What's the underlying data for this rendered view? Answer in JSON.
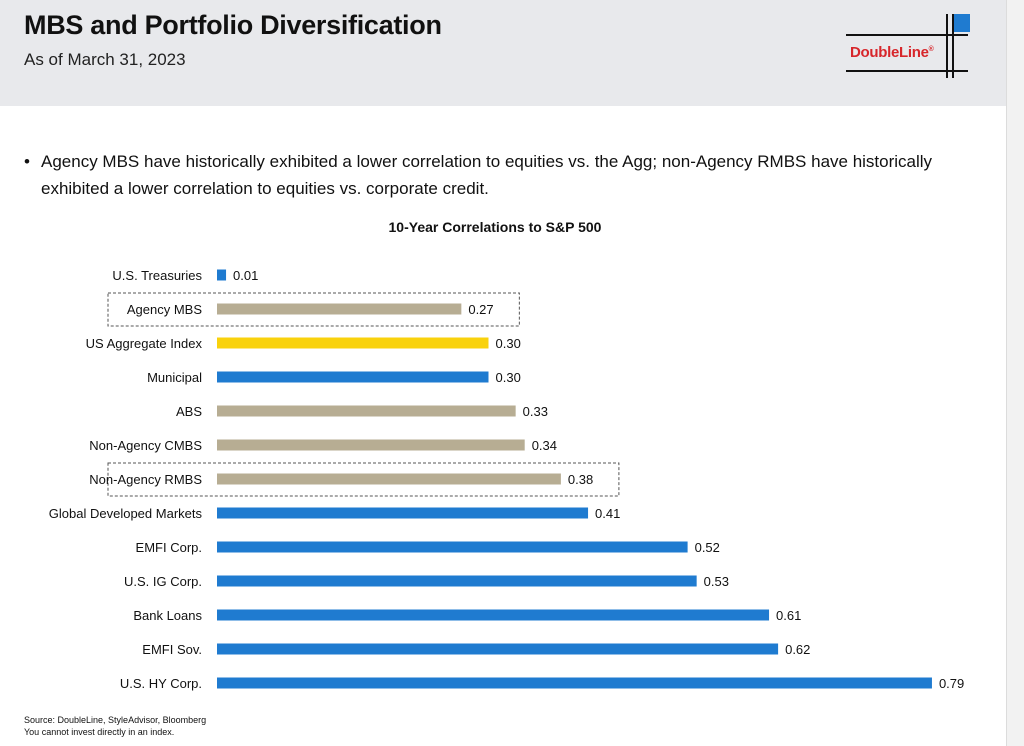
{
  "header": {
    "title": "MBS and Portfolio Diversification",
    "subtitle": "As of March 31, 2023",
    "logo_text": "DoubleLine",
    "logo_mark": "®"
  },
  "bullet": {
    "text": "Agency MBS have historically exhibited a lower correlation to equities vs. the Agg; non-Agency RMBS have historically exhibited a lower correlation to equities vs. corporate credit."
  },
  "colors": {
    "blue": "#1f7bd0",
    "tan": "#b7ad93",
    "yellow": "#f9d20c"
  },
  "chart_data": {
    "type": "bar",
    "orientation": "horizontal",
    "title": "10-Year Correlations to S&P 500",
    "categories": [
      "U.S. Treasuries",
      "Agency MBS",
      "US Aggregate Index",
      "Municipal",
      "ABS",
      "Non-Agency CMBS",
      "Non-Agency RMBS",
      "Global Developed Markets",
      "EMFI Corp.",
      "U.S. IG Corp.",
      "Bank Loans",
      "EMFI Sov.",
      "U.S. HY Corp."
    ],
    "values": [
      0.01,
      0.27,
      0.3,
      0.3,
      0.33,
      0.34,
      0.38,
      0.41,
      0.52,
      0.53,
      0.61,
      0.62,
      0.79
    ],
    "value_labels": [
      "0.01",
      "0.27",
      "0.30",
      "0.30",
      "0.33",
      "0.34",
      "0.38",
      "0.41",
      "0.52",
      "0.53",
      "0.61",
      "0.62",
      "0.79"
    ],
    "bar_colors": [
      "blue",
      "tan",
      "yellow",
      "blue",
      "tan",
      "tan",
      "tan",
      "blue",
      "blue",
      "blue",
      "blue",
      "blue",
      "blue"
    ],
    "highlighted": [
      "Agency MBS",
      "Non-Agency RMBS"
    ],
    "xlim": [
      0,
      0.8
    ],
    "grid": false
  },
  "footer": {
    "source": "Source: DoubleLine, StyleAdvisor, Bloomberg",
    "note": "You cannot invest directly in an index."
  }
}
